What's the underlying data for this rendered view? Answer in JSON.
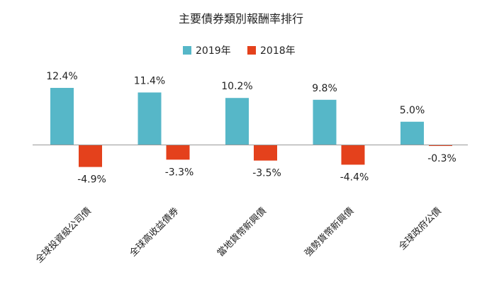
{
  "chart_data": {
    "type": "bar",
    "title": "主要債券類別報酬率排行",
    "categories": [
      "全球投資級公司債",
      "全球高收益債券",
      "當地貨幣新興債",
      "強勢貨幣新興債",
      "全球政府公債"
    ],
    "series": [
      {
        "name": "2019年",
        "color": "#56b7c8",
        "values": [
          12.4,
          11.4,
          10.2,
          9.8,
          5.0
        ],
        "labels": [
          "12.4%",
          "11.4%",
          "10.2%",
          "9.8%",
          "5.0%"
        ]
      },
      {
        "name": "2018年",
        "color": "#e4411c",
        "values": [
          -4.9,
          -3.3,
          -3.5,
          -4.4,
          -0.3
        ],
        "labels": [
          "-4.9%",
          "-3.3%",
          "-3.5%",
          "-4.4%",
          "-0.3%"
        ]
      }
    ],
    "xlabel": "",
    "ylabel": "",
    "ylim": [
      -6,
      13
    ],
    "grid": false,
    "legend": "top-center",
    "axis_color": "#999999"
  }
}
